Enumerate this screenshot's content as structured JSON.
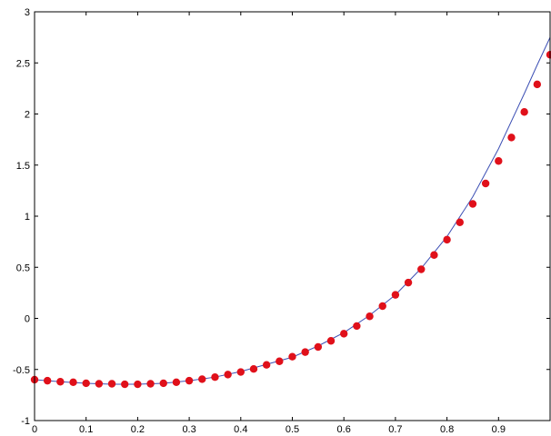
{
  "chart_data": {
    "type": "line",
    "title": "",
    "xlabel": "",
    "ylabel": "",
    "xlim": [
      0,
      1
    ],
    "ylim": [
      -1,
      3
    ],
    "grid": false,
    "x_ticks": [
      "0",
      "0.1",
      "0.2",
      "0.3",
      "0.4",
      "0.5",
      "0.6",
      "0.7",
      "0.8",
      "0.9"
    ],
    "y_ticks": [
      "-1",
      "-0.5",
      "0",
      "0.5",
      "1",
      "1.5",
      "2",
      "2.5",
      "3"
    ],
    "series": [
      {
        "style": "line",
        "color": "#3c4fb4",
        "x": [
          0,
          0.05,
          0.1,
          0.15,
          0.2,
          0.25,
          0.3,
          0.35,
          0.4,
          0.45,
          0.5,
          0.55,
          0.6,
          0.65,
          0.7,
          0.75,
          0.8,
          0.85,
          0.9,
          0.95,
          0.975,
          1.0
        ],
        "y": [
          -0.6,
          -0.62,
          -0.635,
          -0.645,
          -0.645,
          -0.635,
          -0.61,
          -0.575,
          -0.52,
          -0.45,
          -0.38,
          -0.27,
          -0.14,
          0.03,
          0.23,
          0.49,
          0.8,
          1.19,
          1.66,
          2.2,
          2.48,
          2.75
        ]
      },
      {
        "style": "markers",
        "color": "#e0101a",
        "x": [
          0,
          0.025,
          0.05,
          0.075,
          0.1,
          0.125,
          0.15,
          0.175,
          0.2,
          0.225,
          0.25,
          0.275,
          0.3,
          0.325,
          0.35,
          0.375,
          0.4,
          0.425,
          0.45,
          0.475,
          0.5,
          0.525,
          0.55,
          0.575,
          0.6,
          0.625,
          0.65,
          0.675,
          0.7,
          0.725,
          0.75,
          0.775,
          0.8,
          0.825,
          0.85,
          0.875,
          0.9,
          0.925,
          0.95,
          0.975,
          1.0
        ],
        "y": [
          -0.6,
          -0.61,
          -0.62,
          -0.625,
          -0.635,
          -0.64,
          -0.64,
          -0.645,
          -0.645,
          -0.64,
          -0.635,
          -0.625,
          -0.61,
          -0.595,
          -0.575,
          -0.55,
          -0.525,
          -0.495,
          -0.455,
          -0.42,
          -0.375,
          -0.33,
          -0.28,
          -0.22,
          -0.15,
          -0.075,
          0.02,
          0.12,
          0.23,
          0.35,
          0.48,
          0.62,
          0.77,
          0.94,
          1.12,
          1.32,
          1.54,
          1.77,
          2.02,
          2.29,
          2.58
        ]
      }
    ]
  }
}
